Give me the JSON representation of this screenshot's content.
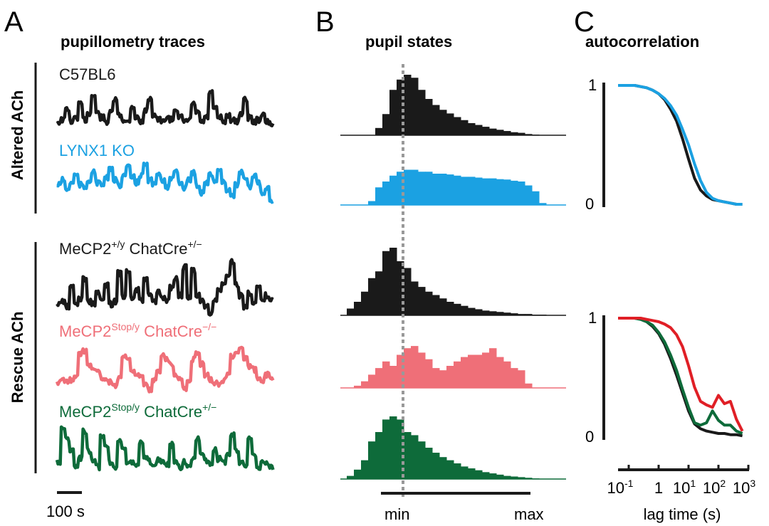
{
  "colors": {
    "black": "#1a1a1a",
    "blue": "#1ba1e2",
    "pink": "#ef6f78",
    "green": "#0e6b3a",
    "red": "#e01f26",
    "dash": "#999999"
  },
  "panelA": {
    "letter": "A",
    "title": "pupillometry traces",
    "group1": "Altered ACh",
    "group2": "Rescue ACh",
    "scalebar": "100 s",
    "traces": [
      {
        "label": "C57BL6",
        "label_sup": "",
        "label_rest": "",
        "color": "black",
        "values": [
          0.3,
          0.35,
          0.6,
          0.3,
          0.4,
          0.7,
          0.35,
          0.5,
          0.9,
          0.5,
          0.4,
          0.3,
          0.5,
          0.8,
          0.45,
          0.35,
          0.3,
          0.65,
          0.4,
          0.3,
          0.55,
          0.85,
          0.45,
          0.35,
          0.3,
          0.4,
          0.35,
          0.6,
          0.4,
          0.3,
          0.35,
          0.7,
          0.5,
          0.3,
          0.4,
          0.95,
          0.6,
          0.4,
          0.3,
          0.45,
          0.35,
          0.3,
          0.5,
          0.8,
          0.4,
          0.3,
          0.35,
          0.45,
          0.3,
          0.25
        ]
      },
      {
        "label": "LYNX1 KO",
        "label_sup": "",
        "label_rest": "",
        "color": "blue",
        "values": [
          0.5,
          0.6,
          0.4,
          0.55,
          0.7,
          0.5,
          0.45,
          0.6,
          0.75,
          0.55,
          0.5,
          0.65,
          0.8,
          0.6,
          0.5,
          0.7,
          0.85,
          0.65,
          0.55,
          0.7,
          0.9,
          0.6,
          0.5,
          0.75,
          0.6,
          0.45,
          0.6,
          0.8,
          0.55,
          0.45,
          0.6,
          0.75,
          0.5,
          0.35,
          0.55,
          0.7,
          0.6,
          0.8,
          0.55,
          0.4,
          0.3,
          0.5,
          0.75,
          0.6,
          0.45,
          0.7,
          0.55,
          0.35,
          0.45,
          0.2
        ]
      },
      {
        "label": "MeCP2",
        "label_sup": "+/y",
        "label_rest": " ChatCre",
        "label_sup2": "+/−",
        "color": "black",
        "values": [
          0.25,
          0.3,
          0.2,
          0.55,
          0.25,
          0.35,
          0.7,
          0.3,
          0.25,
          0.45,
          0.3,
          0.6,
          0.25,
          0.3,
          0.8,
          0.4,
          0.85,
          0.35,
          0.5,
          0.3,
          0.7,
          0.4,
          0.3,
          0.45,
          0.35,
          0.3,
          0.55,
          0.7,
          0.4,
          0.9,
          0.35,
          0.85,
          0.4,
          0.3,
          0.2,
          0.1,
          0.3,
          0.5,
          0.6,
          0.75,
          1.0,
          0.6,
          0.4,
          0.2,
          0.45,
          0.3,
          0.55,
          0.3,
          0.4,
          0.3
        ]
      },
      {
        "label": "MeCP2",
        "label_sup": "Stop/y",
        "label_rest": " ChatCre",
        "label_sup2": "−/−",
        "color": "pink",
        "values": [
          0.25,
          0.3,
          0.25,
          0.3,
          0.35,
          0.8,
          0.85,
          0.6,
          0.55,
          0.45,
          0.35,
          0.3,
          0.25,
          0.2,
          0.35,
          0.75,
          0.7,
          0.5,
          0.4,
          0.35,
          0.2,
          0.1,
          0.3,
          0.45,
          0.8,
          0.7,
          0.6,
          0.4,
          0.3,
          0.15,
          0.25,
          0.7,
          0.8,
          0.6,
          0.4,
          0.3,
          0.25,
          0.2,
          0.3,
          0.4,
          0.75,
          0.85,
          0.9,
          0.7,
          0.55,
          0.5,
          0.35,
          0.3,
          0.4,
          0.3
        ]
      },
      {
        "label": "MeCP2",
        "label_sup": "Stop/y",
        "label_rest": " ChatCre",
        "label_sup2": "+/−",
        "color": "green",
        "values": [
          0.3,
          0.9,
          0.7,
          0.5,
          0.2,
          0.35,
          0.85,
          0.5,
          0.3,
          0.2,
          0.75,
          0.6,
          0.3,
          0.2,
          0.7,
          0.5,
          0.25,
          0.3,
          0.25,
          0.65,
          0.4,
          0.3,
          0.2,
          0.35,
          0.3,
          0.25,
          0.6,
          0.3,
          0.2,
          0.3,
          0.25,
          0.35,
          0.7,
          0.4,
          0.3,
          0.25,
          0.5,
          0.35,
          0.3,
          0.4,
          0.8,
          0.5,
          0.3,
          0.25,
          0.7,
          0.4,
          0.2,
          0.3,
          0.25,
          0.2
        ]
      }
    ]
  },
  "panelB": {
    "letter": "B",
    "title": "pupil states",
    "x_min_label": "min",
    "x_max_label": "max",
    "histograms": [
      {
        "color": "black",
        "values": [
          0,
          0,
          0,
          0,
          0.12,
          0.35,
          0.75,
          0.92,
          1.0,
          0.95,
          0.75,
          0.6,
          0.5,
          0.42,
          0.36,
          0.3,
          0.25,
          0.2,
          0.17,
          0.14,
          0.11,
          0.09,
          0.07,
          0.05,
          0.04,
          0.02,
          0.01,
          0
        ]
      },
      {
        "color": "blue",
        "values": [
          0,
          0,
          0,
          0.1,
          0.45,
          0.6,
          0.75,
          0.85,
          0.9,
          0.9,
          0.85,
          0.85,
          0.8,
          0.8,
          0.78,
          0.75,
          0.72,
          0.72,
          0.7,
          0.68,
          0.68,
          0.66,
          0.65,
          0.62,
          0.6,
          0.5,
          0.35,
          0.05
        ]
      },
      {
        "color": "black",
        "values": [
          0.1,
          0.2,
          0.35,
          0.55,
          0.65,
          0.95,
          1.0,
          0.8,
          0.7,
          0.5,
          0.42,
          0.35,
          0.3,
          0.25,
          0.2,
          0.17,
          0.14,
          0.11,
          0.09,
          0.07,
          0.06,
          0.05,
          0.04,
          0.03,
          0.02,
          0.02,
          0.01,
          0.01
        ]
      },
      {
        "color": "pink",
        "values": [
          0,
          0.05,
          0.15,
          0.3,
          0.45,
          0.6,
          0.5,
          0.75,
          0.9,
          0.95,
          0.8,
          0.65,
          0.45,
          0.4,
          0.5,
          0.6,
          0.7,
          0.75,
          0.75,
          0.8,
          0.9,
          0.7,
          0.6,
          0.45,
          0.4,
          0.1,
          0,
          0
        ]
      },
      {
        "color": "green",
        "values": [
          0.05,
          0.15,
          0.3,
          0.6,
          0.75,
          0.95,
          1.0,
          0.95,
          0.75,
          0.7,
          0.6,
          0.5,
          0.42,
          0.35,
          0.3,
          0.25,
          0.2,
          0.17,
          0.14,
          0.11,
          0.09,
          0.07,
          0.05,
          0.04,
          0.03,
          0.02,
          0.01,
          0
        ]
      }
    ]
  },
  "chart_data": [
    {
      "type": "line",
      "title": "autocorrelation",
      "xlabel": "lag time (s)",
      "x_scale": "log",
      "xlim": [
        0.1,
        1000
      ],
      "x_tick_labels": [
        "10",
        "1",
        "10",
        "10",
        "10"
      ],
      "x_tick_sups": [
        "-1",
        "",
        "1",
        "2",
        "3"
      ],
      "y_tick_labels": [
        "1",
        "0"
      ],
      "ylim": [
        0,
        1
      ],
      "x_log10": [
        -1,
        -0.8,
        -0.6,
        -0.4,
        -0.2,
        0,
        0.2,
        0.4,
        0.6,
        0.8,
        1,
        1.2,
        1.4,
        1.6,
        1.8,
        2,
        2.2,
        2.4,
        2.6,
        2.8
      ],
      "series": [
        {
          "color": "black",
          "values": [
            1,
            1,
            0.99,
            0.98,
            0.96,
            0.93,
            0.88,
            0.8,
            0.7,
            0.55,
            0.38,
            0.22,
            0.12,
            0.07,
            0.04,
            0.03,
            0.02,
            0.01,
            0,
            0
          ]
        },
        {
          "color": "blue",
          "values": [
            1,
            1,
            0.99,
            0.98,
            0.96,
            0.93,
            0.89,
            0.83,
            0.75,
            0.63,
            0.5,
            0.34,
            0.2,
            0.1,
            0.05,
            0.03,
            0.02,
            0.01,
            0,
            0
          ]
        }
      ]
    },
    {
      "type": "line",
      "xlabel": "lag time (s)",
      "x_scale": "log",
      "xlim": [
        0.1,
        1000
      ],
      "y_tick_labels": [
        "1",
        "0"
      ],
      "ylim": [
        0,
        1
      ],
      "x_log10": [
        -1,
        -0.8,
        -0.6,
        -0.4,
        -0.2,
        0,
        0.2,
        0.4,
        0.6,
        0.8,
        1,
        1.2,
        1.4,
        1.6,
        1.8,
        2,
        2.2,
        2.4,
        2.6,
        2.8
      ],
      "series": [
        {
          "color": "black",
          "values": [
            1,
            1,
            0.99,
            0.97,
            0.93,
            0.87,
            0.78,
            0.66,
            0.52,
            0.37,
            0.22,
            0.11,
            0.07,
            0.05,
            0.04,
            0.03,
            0.03,
            0.02,
            0.02,
            0.01
          ]
        },
        {
          "color": "green",
          "values": [
            1,
            1,
            0.99,
            0.97,
            0.94,
            0.88,
            0.8,
            0.69,
            0.56,
            0.4,
            0.25,
            0.12,
            0.1,
            0.12,
            0.22,
            0.14,
            0.1,
            0.1,
            0.05,
            0.03
          ]
        },
        {
          "color": "red",
          "values": [
            1,
            1,
            1,
            0.99,
            0.98,
            0.97,
            0.95,
            0.92,
            0.86,
            0.76,
            0.6,
            0.42,
            0.3,
            0.27,
            0.25,
            0.35,
            0.28,
            0.3,
            0.15,
            0.05
          ]
        }
      ]
    }
  ],
  "panelC": {
    "letter": "C"
  }
}
